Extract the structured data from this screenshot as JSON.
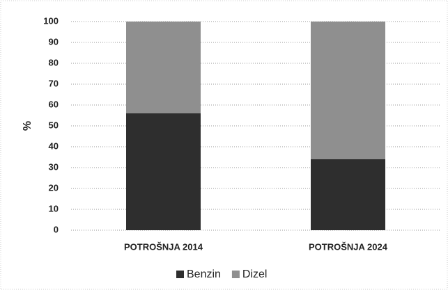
{
  "chart_data": {
    "type": "bar",
    "stacked": true,
    "ylabel": "%",
    "categories": [
      "POTROŠNJA 2014",
      "POTROŠNJA 2024"
    ],
    "series": [
      {
        "name": "Benzin",
        "color": "#2e2e2e",
        "values": [
          56,
          34
        ]
      },
      {
        "name": "Dizel",
        "color": "#8f8f8f",
        "values": [
          44,
          66
        ]
      }
    ],
    "ylim": [
      0,
      100
    ],
    "yticks": [
      0,
      10,
      20,
      30,
      40,
      50,
      60,
      70,
      80,
      90,
      100
    ],
    "grid": true,
    "legend": "bottom"
  }
}
